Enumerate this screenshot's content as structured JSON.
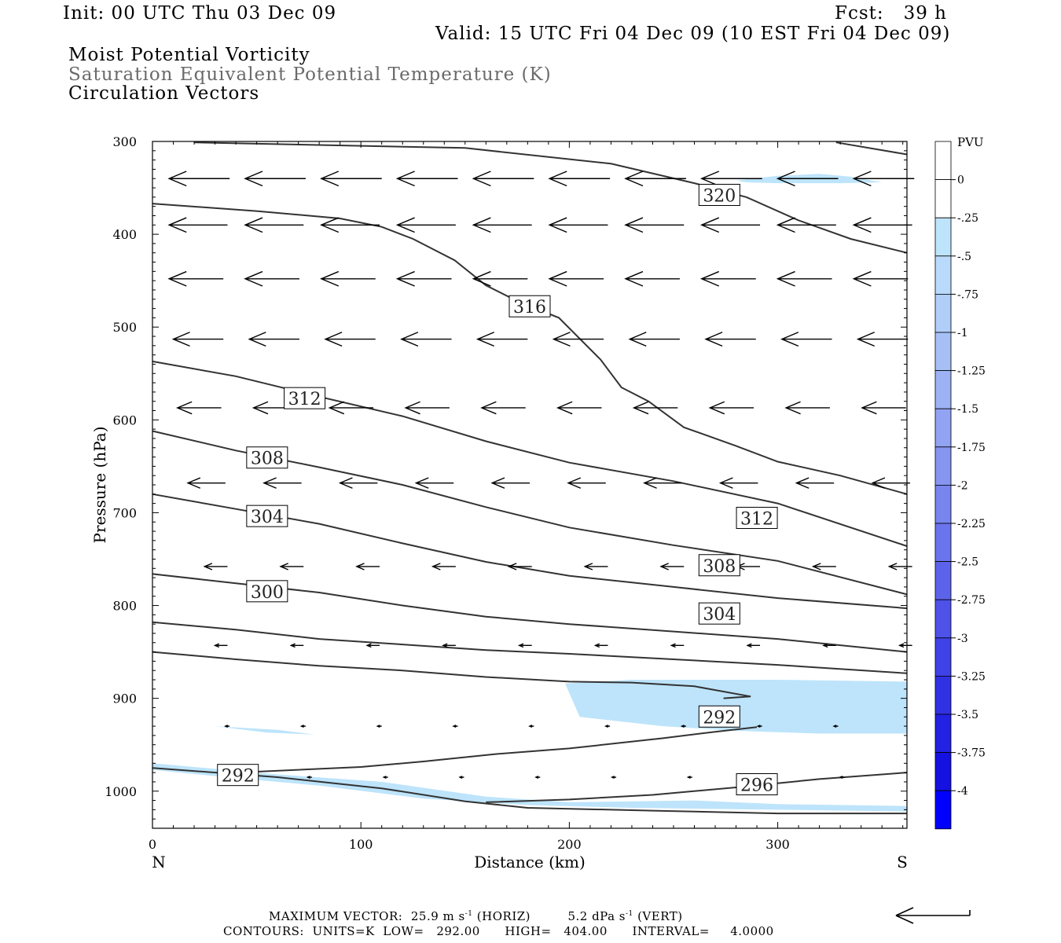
{
  "header": {
    "init": "Init: 00 UTC Thu 03 Dec 09",
    "fcst": "Fcst:   39 h",
    "valid": "Valid: 15 UTC Fri 04 Dec 09 (10 EST Fri 04 Dec 09)",
    "field1": "Moist Potential Vorticity",
    "field2": "Saturation Equivalent Potential Temperature (K)",
    "field3": "Circulation Vectors"
  },
  "colors": {
    "shade_light": "#bde4fb",
    "contour": "#333333",
    "vector": "#000000"
  },
  "chart_data": {
    "type": "cross-section",
    "title": "Moist Potential Vorticity / Saturation Equivalent Potential Temperature (K) / Circulation Vectors",
    "xlabel": "Distance (km)",
    "ylabel": "Pressure (hPa)",
    "xlim": [
      0,
      362
    ],
    "ylim": [
      1040,
      300
    ],
    "x_ticks": [
      0,
      100,
      200,
      300
    ],
    "y_ticks": [
      300,
      400,
      500,
      600,
      700,
      800,
      900,
      1000
    ],
    "left_end_label": "N",
    "right_end_label": "S",
    "contours": [
      {
        "value": 320,
        "points": [
          [
            20,
            301
          ],
          [
            150,
            307
          ],
          [
            220,
            324
          ],
          [
            260,
            345
          ],
          [
            285,
            360
          ],
          [
            310,
            385
          ],
          [
            335,
            405
          ],
          [
            362,
            420
          ]
        ]
      },
      {
        "value": 320,
        "points": [
          [
            328,
            301
          ],
          [
            362,
            314
          ]
        ]
      },
      {
        "value": 316,
        "points": [
          [
            0,
            367
          ],
          [
            50,
            375
          ],
          [
            90,
            383
          ],
          [
            110,
            392
          ],
          [
            125,
            405
          ],
          [
            145,
            428
          ],
          [
            160,
            455
          ],
          [
            175,
            472
          ],
          [
            195,
            490
          ],
          [
            215,
            535
          ],
          [
            225,
            565
          ],
          [
            238,
            580
          ],
          [
            255,
            608
          ],
          [
            280,
            628
          ],
          [
            300,
            645
          ],
          [
            330,
            660
          ],
          [
            362,
            680
          ]
        ]
      },
      {
        "value": 312,
        "points": [
          [
            0,
            537
          ],
          [
            40,
            553
          ],
          [
            80,
            575
          ],
          [
            120,
            596
          ],
          [
            160,
            623
          ],
          [
            200,
            646
          ],
          [
            250,
            666
          ],
          [
            300,
            690
          ],
          [
            362,
            736
          ]
        ]
      },
      {
        "value": 308,
        "points": [
          [
            0,
            612
          ],
          [
            40,
            633
          ],
          [
            80,
            651
          ],
          [
            120,
            670
          ],
          [
            160,
            694
          ],
          [
            200,
            716
          ],
          [
            250,
            735
          ],
          [
            300,
            752
          ],
          [
            362,
            788
          ]
        ]
      },
      {
        "value": 304,
        "points": [
          [
            0,
            680
          ],
          [
            40,
            696
          ],
          [
            80,
            712
          ],
          [
            120,
            733
          ],
          [
            160,
            753
          ],
          [
            200,
            768
          ],
          [
            250,
            780
          ],
          [
            300,
            792
          ],
          [
            362,
            803
          ]
        ]
      },
      {
        "value": 300,
        "points": [
          [
            0,
            766
          ],
          [
            40,
            776
          ],
          [
            80,
            786
          ],
          [
            120,
            800
          ],
          [
            160,
            812
          ],
          [
            200,
            820
          ],
          [
            250,
            828
          ],
          [
            300,
            836
          ],
          [
            362,
            850
          ]
        ]
      },
      {
        "value": 296,
        "points": [
          [
            0,
            818
          ],
          [
            40,
            826
          ],
          [
            80,
            836
          ],
          [
            120,
            842
          ],
          [
            160,
            848
          ],
          [
            200,
            852
          ],
          [
            250,
            858
          ],
          [
            300,
            864
          ],
          [
            362,
            873
          ]
        ]
      },
      {
        "value": 292,
        "points": [
          [
            0,
            850
          ],
          [
            40,
            858
          ],
          [
            80,
            865
          ],
          [
            120,
            870
          ],
          [
            160,
            877
          ],
          [
            200,
            882
          ],
          [
            230,
            883
          ],
          [
            260,
            887
          ],
          [
            287,
            898
          ],
          [
            274,
            900
          ]
        ]
      },
      {
        "value": 292,
        "points": [
          [
            50,
            979
          ],
          [
            100,
            974
          ],
          [
            130,
            968
          ],
          [
            165,
            960
          ],
          [
            200,
            954
          ],
          [
            245,
            943
          ],
          [
            270,
            936
          ],
          [
            290,
            931
          ]
        ]
      },
      {
        "value": 296,
        "points": [
          [
            160,
            1012
          ],
          [
            200,
            1009
          ],
          [
            240,
            1004
          ],
          [
            280,
            996
          ],
          [
            320,
            987
          ],
          [
            362,
            980
          ]
        ]
      },
      {
        "value": 0,
        "points": [
          [
            0,
            975
          ],
          [
            60,
            985
          ],
          [
            110,
            997
          ],
          [
            150,
            1011
          ],
          [
            180,
            1018
          ],
          [
            240,
            1021
          ],
          [
            300,
            1024
          ],
          [
            362,
            1024
          ]
        ]
      }
    ],
    "contour_labels": [
      {
        "text": "320",
        "x": 272,
        "p": 358
      },
      {
        "text": "316",
        "x": 181,
        "p": 478
      },
      {
        "text": "312",
        "x": 73,
        "p": 577
      },
      {
        "text": "308",
        "x": 55,
        "p": 641
      },
      {
        "text": "304",
        "x": 55,
        "p": 704
      },
      {
        "text": "300",
        "x": 55,
        "p": 785
      },
      {
        "text": "312",
        "x": 290,
        "p": 706
      },
      {
        "text": "308",
        "x": 272,
        "p": 757
      },
      {
        "text": "304",
        "x": 272,
        "p": 809
      },
      {
        "text": "292",
        "x": 272,
        "p": 920
      },
      {
        "text": "292",
        "x": 41,
        "p": 983
      },
      {
        "text": "296",
        "x": 290,
        "p": 993
      }
    ],
    "shaded_regions": [
      {
        "pvu": -0.25,
        "points": [
          [
            280,
            342
          ],
          [
            300,
            337
          ],
          [
            320,
            335
          ],
          [
            335,
            338
          ],
          [
            350,
            344
          ],
          [
            330,
            345
          ],
          [
            300,
            345
          ],
          [
            285,
            344
          ]
        ]
      },
      {
        "pvu": -0.25,
        "points": [
          [
            198,
            884
          ],
          [
            230,
            880
          ],
          [
            260,
            880
          ],
          [
            300,
            880
          ],
          [
            362,
            882
          ],
          [
            362,
            938
          ],
          [
            320,
            938
          ],
          [
            280,
            935
          ],
          [
            245,
            930
          ],
          [
            205,
            920
          ]
        ]
      },
      {
        "pvu": -0.25,
        "points": [
          [
            30,
            930
          ],
          [
            60,
            934
          ],
          [
            78,
            939
          ],
          [
            55,
            937
          ]
        ]
      },
      {
        "pvu": -0.25,
        "points": [
          [
            0,
            970
          ],
          [
            60,
            982
          ],
          [
            110,
            990
          ],
          [
            160,
            1006
          ],
          [
            200,
            1012
          ],
          [
            260,
            1010
          ],
          [
            300,
            1014
          ],
          [
            362,
            1016
          ],
          [
            362,
            1022
          ],
          [
            300,
            1020
          ],
          [
            230,
            1018
          ],
          [
            180,
            1015
          ],
          [
            130,
            1008
          ],
          [
            80,
            994
          ],
          [
            40,
            986
          ],
          [
            0,
            977
          ]
        ]
      }
    ],
    "vector_rows": [
      {
        "p": 340,
        "x0": 8,
        "dx": 36.5,
        "len": 29
      },
      {
        "p": 390,
        "x0": 8,
        "dx": 36.5,
        "len": 28
      },
      {
        "p": 448,
        "x0": 8,
        "dx": 36.5,
        "len": 26
      },
      {
        "p": 513,
        "x0": 10,
        "dx": 36.5,
        "len": 24
      },
      {
        "p": 587,
        "x0": 12,
        "dx": 36.5,
        "len": 21
      },
      {
        "p": 668,
        "x0": 17,
        "dx": 36.5,
        "len": 18
      },
      {
        "p": 758,
        "x0": 25,
        "dx": 36.5,
        "len": 11
      },
      {
        "p": 843,
        "x0": 30,
        "dx": 36.5,
        "len": 6
      },
      {
        "p": 930,
        "x0": 35,
        "dx": 36.5,
        "len": 2
      },
      {
        "p": 985,
        "x0": 38,
        "dx": 36.5,
        "len": 2
      }
    ],
    "colorbar": {
      "label": "PVU",
      "tick_labels": [
        "0",
        "-.25",
        "-.5",
        "-.75",
        "-1",
        "-1.25",
        "-1.5",
        "-1.75",
        "-2",
        "-2.25",
        "-2.5",
        "-2.75",
        "-3",
        "-3.25",
        "-3.5",
        "-3.75",
        "-4"
      ],
      "colors": [
        "#ffffff",
        "#bde4fb",
        "#b9dafa",
        "#b0cef8",
        "#a6c0f6",
        "#9cb2f4",
        "#91a3f2",
        "#8595f0",
        "#7885ee",
        "#6a74ec",
        "#5c63ea",
        "#4e52e8",
        "#3f42e6",
        "#3131e4",
        "#2321e2",
        "#1511e0",
        "#0000ff"
      ]
    }
  },
  "footer": {
    "max_vector_prefix": "MAXIMUM VECTOR:  25.9 m s",
    "max_vector_mid": "(HORIZ)",
    "max_vector_vert": "5.2 dPa s",
    "max_vector_vert_unit": "(VERT)",
    "superscript": "-1",
    "contours": "CONTOURS:  UNITS=K  LOW=   292.00      HIGH=   404.00      INTERVAL=     4.0000"
  }
}
